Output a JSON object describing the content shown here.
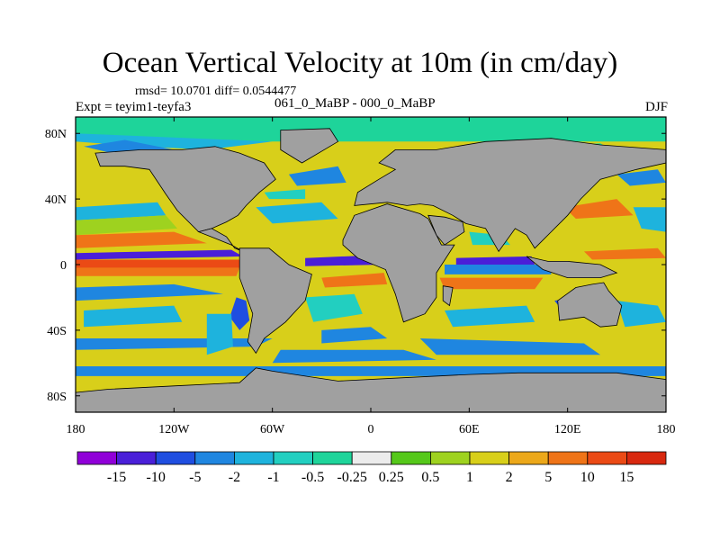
{
  "chart_data": {
    "type": "heatmap",
    "title": "Ocean Vertical Velocity at 10m (in cm/day)",
    "stats": "rmsd= 10.0701 diff= 0.0544477",
    "experiments": "061_0_MaBP - 000_0_MaBP",
    "expt": "Expt = teyim1-teyfa3",
    "season": "DJF",
    "x_ticks": [
      "180",
      "120W",
      "60W",
      "0",
      "60E",
      "120E",
      "180"
    ],
    "x_tick_values": [
      -180,
      -120,
      -60,
      0,
      60,
      120,
      180
    ],
    "y_ticks": [
      "80N",
      "40N",
      "0",
      "40S",
      "80S"
    ],
    "y_tick_values": [
      80,
      40,
      0,
      -40,
      -80
    ],
    "xlim": [
      -180,
      180
    ],
    "ylim": [
      -90,
      90
    ],
    "colorbar_labels": [
      "-15",
      "-10",
      "-5",
      "-2",
      "-1",
      "-0.5",
      "-0.25",
      "0.25",
      "0.5",
      "1",
      "2",
      "5",
      "10",
      "15"
    ],
    "colorbar_colors": [
      "#9000d8",
      "#4a1fd8",
      "#1f4ee0",
      "#1f86e0",
      "#1eb3dd",
      "#22cfc0",
      "#1ed49a",
      "#ececec",
      "#55c81a",
      "#9ed21f",
      "#d8cf1a",
      "#eca81a",
      "#ef7418",
      "#eb4a15",
      "#d8280f"
    ],
    "land_color": "#a0a0a0"
  }
}
